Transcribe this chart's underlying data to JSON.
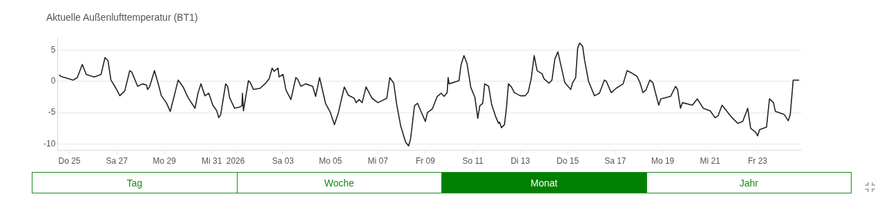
{
  "chart_data": {
    "type": "line",
    "title": "Aktuelle Außenlufttemperatur (BT1)",
    "series": [
      {
        "color": "#222222",
        "x": [
          "2025-12-24T14:00",
          "2025-12-24T15:00",
          "2025-12-25T04:00",
          "2025-12-25T08:00",
          "2025-12-25T13:00",
          "2025-12-25T17:00",
          "2025-12-26T01:00",
          "2025-12-26T08:00",
          "2025-12-26T12:00",
          "2025-12-26T15:00",
          "2025-12-26T18:00",
          "2025-12-26T23:00",
          "2025-12-27T03:00",
          "2025-12-27T08:00",
          "2025-12-27T13:00",
          "2025-12-27T15:00",
          "2025-12-27T21:00",
          "2025-12-28T02:00",
          "2025-12-28T06:00",
          "2025-12-28T07:00",
          "2025-12-28T09:00",
          "2025-12-28T14:00",
          "2025-12-28T18:00",
          "2025-12-28T21:00",
          "2025-12-29T02:00",
          "2025-12-29T06:00",
          "2025-12-29T14:00",
          "2025-12-29T19:00",
          "2025-12-30T00:00",
          "2025-12-30T07:00",
          "2025-12-30T10:00",
          "2025-12-30T13:00",
          "2025-12-30T17:00",
          "2025-12-30T21:00",
          "2025-12-31T01:00",
          "2025-12-31T05:00",
          "2025-12-31T07:00",
          "2025-12-31T09:00",
          "2025-12-31T14:00",
          "2025-12-31T16:00",
          "2025-12-31T18:00",
          "2025-12-31T23:00",
          "2026-01-01T04:00",
          "2026-01-01T06:30",
          "2026-01-01T07:00",
          "2026-01-01T08:00",
          "2026-01-01T13:00",
          "2026-01-01T15:00",
          "2026-01-01T18:00",
          "2026-01-02T01:00",
          "2026-01-02T07:00",
          "2026-01-02T10:00",
          "2026-01-02T13:00",
          "2026-01-02T15:00",
          "2026-01-02T19:00",
          "2026-01-02T20:00",
          "2026-01-03T00:00",
          "2026-01-03T03:00",
          "2026-01-03T08:00",
          "2026-01-03T13:00",
          "2026-01-03T15:00",
          "2026-01-03T18:00",
          "2026-01-03T23:00",
          "2026-01-04T06:00",
          "2026-01-04T09:00",
          "2026-01-04T13:00",
          "2026-01-04T19:00",
          "2026-01-05T00:00",
          "2026-01-05T04:00",
          "2026-01-05T08:00",
          "2026-01-05T14:00",
          "2026-01-05T18:00",
          "2026-01-06T00:00",
          "2026-01-06T02:00",
          "2026-01-06T05:00",
          "2026-01-06T08:00",
          "2026-01-06T12:00",
          "2026-01-06T18:00",
          "2026-01-07T00:00",
          "2026-01-07T09:00",
          "2026-01-07T12:00",
          "2026-01-07T16:00",
          "2026-01-07T19:00",
          "2026-01-07T23:00",
          "2026-01-08T04:00",
          "2026-01-08T07:00",
          "2026-01-08T09:00",
          "2026-01-08T13:00",
          "2026-01-08T16:00",
          "2026-01-08T19:00",
          "2026-01-09T00:00",
          "2026-01-09T02:00",
          "2026-01-09T07:00",
          "2026-01-09T12:00",
          "2026-01-09T16:00",
          "2026-01-09T19:00",
          "2026-01-09T22:00",
          "2026-01-09T23:00",
          "2026-01-10T00:00",
          "2026-01-10T10:00",
          "2026-01-10T12:00",
          "2026-01-10T15:00",
          "2026-01-10T18:00",
          "2026-01-10T22:00",
          "2026-01-11T02:00",
          "2026-01-11T05:00",
          "2026-01-11T07:00",
          "2026-01-11T10:00",
          "2026-01-11T12:00",
          "2026-01-11T16:00",
          "2026-01-11T19:00",
          "2026-01-11T23:00",
          "2026-01-12T02:00",
          "2026-01-12T03:00",
          "2026-01-12T05:00",
          "2026-01-12T08:00",
          "2026-01-12T10:00",
          "2026-01-12T12:00",
          "2026-01-12T15:00",
          "2026-01-12T18:00",
          "2026-01-13T00:00",
          "2026-01-13T05:00",
          "2026-01-13T08:00",
          "2026-01-13T11:00",
          "2026-01-13T14:00",
          "2026-01-13T17:00",
          "2026-01-13T22:00",
          "2026-01-14T00:00",
          "2026-01-14T05:00",
          "2026-01-14T08:00",
          "2026-01-14T11:00",
          "2026-01-14T14:00",
          "2026-01-14T17:00",
          "2026-01-14T21:00",
          "2026-01-15T03:00",
          "2026-01-15T05:00",
          "2026-01-15T08:00",
          "2026-01-15T10:00",
          "2026-01-15T12:00",
          "2026-01-15T15:00",
          "2026-01-15T17:00",
          "2026-01-15T21:00",
          "2026-01-16T03:00",
          "2026-01-16T08:00",
          "2026-01-16T13:00",
          "2026-01-16T15:00",
          "2026-01-16T20:00",
          "2026-01-17T01:00",
          "2026-01-17T08:00",
          "2026-01-17T12:00",
          "2026-01-17T17:00",
          "2026-01-17T22:00",
          "2026-01-18T01:00",
          "2026-01-18T04:00",
          "2026-01-18T07:00",
          "2026-01-18T11:00",
          "2026-01-18T14:00",
          "2026-01-18T20:00",
          "2026-01-18T22:00",
          "2026-01-19T08:00",
          "2026-01-19T13:00",
          "2026-01-19T15:00",
          "2026-01-19T18:00",
          "2026-01-19T20:00",
          "2026-01-20T06:00",
          "2026-01-20T11:00",
          "2026-01-20T17:00",
          "2026-01-21T00:00",
          "2026-01-21T05:00",
          "2026-01-21T08:00",
          "2026-01-21T12:00",
          "2026-01-21T21:00",
          "2026-01-22T04:00",
          "2026-01-22T09:00",
          "2026-01-22T14:00",
          "2026-01-22T17:00",
          "2026-01-22T22:00",
          "2026-01-23T00:00",
          "2026-01-23T02:00",
          "2026-01-23T09:00",
          "2026-01-23T12:00",
          "2026-01-23T16:00",
          "2026-01-23T18:00",
          "2026-01-24T03:00",
          "2026-01-24T07:00",
          "2026-01-24T09:00",
          "2026-01-24T12:00",
          "2026-01-24T18:00"
        ],
        "values": [
          1.1,
          0.8,
          0.2,
          0.6,
          2.7,
          1.1,
          0.7,
          1.1,
          3.8,
          3.3,
          0.2,
          -1.1,
          -2.3,
          -1.5,
          1.7,
          1.5,
          -0.8,
          -0.4,
          -0.6,
          -1.3,
          -0.9,
          1.7,
          -0.5,
          -2.3,
          -3.4,
          -4.8,
          0.2,
          -0.9,
          -2.6,
          -4.3,
          -1.9,
          -0.4,
          -2.3,
          -1.9,
          -3.8,
          -4.7,
          -5.8,
          -5.3,
          -0.4,
          -0.8,
          -2.6,
          -4.3,
          -4.1,
          -3.9,
          -1.9,
          -4.7,
          0.1,
          -0.2,
          -1.3,
          -1.1,
          -0.2,
          0.4,
          2.1,
          1.6,
          2.1,
          0.7,
          1.1,
          -1.4,
          -2.9,
          0.6,
          0.3,
          -0.8,
          -0.4,
          -0.8,
          -2.4,
          0.6,
          -3.5,
          -5.0,
          -6.9,
          -5.0,
          -0.9,
          -2.2,
          -2.7,
          -3.4,
          -2.9,
          -3.4,
          -0.9,
          -2.7,
          -3.4,
          -2.7,
          0.6,
          -0.3,
          -3.7,
          -7.1,
          -9.7,
          -10.3,
          -9.2,
          -3.9,
          -3.5,
          -4.6,
          -6.4,
          -5.0,
          -4.4,
          -2.4,
          -1.9,
          -2.4,
          -1.8,
          0.6,
          -0.4,
          0.1,
          2.6,
          4.1,
          2.9,
          -1.0,
          -2.5,
          -5.9,
          -3.9,
          -3.5,
          -0.4,
          -0.8,
          -3.7,
          -5.6,
          -6.7,
          -6.5,
          -7.4,
          -6.9,
          -4.2,
          -0.4,
          -0.9,
          -1.8,
          -2.3,
          -2.3,
          -1.7,
          0.4,
          4.1,
          1.7,
          1.2,
          0.4,
          -0.3,
          0.2,
          3.6,
          4.7,
          2.6,
          -0.2,
          -1.3,
          -0.2,
          0.6,
          5.3,
          6.1,
          5.6,
          3.4,
          0,
          -2.3,
          -1.9,
          0.2,
          0,
          -1.8,
          -1.1,
          -0.4,
          1.7,
          1.3,
          0.8,
          -0.2,
          -1.8,
          -1.4,
          0.2,
          -0.2,
          -3.8,
          -2.8,
          -2.4,
          -0.8,
          -1.3,
          -4.3,
          -3.4,
          -3.8,
          -2.8,
          -4.3,
          -4.7,
          -5.8,
          -5.5,
          -3.8,
          -5.6,
          -6.7,
          -6.4,
          -4.3,
          -7.5,
          -8.1,
          -8.7,
          -7.7,
          -7.3,
          -2.8,
          -3.4,
          -4.8,
          -5.3,
          -6.3,
          -5.3,
          0.2,
          0.2
        ]
      }
    ],
    "xlim": [
      "2025-12-24T12:00",
      "2026-01-24T20:00"
    ],
    "xticks": [
      {
        "value": "2025-12-25",
        "label": "Do 25"
      },
      {
        "value": "2025-12-27",
        "label": "Sa 27"
      },
      {
        "value": "2025-12-29",
        "label": "Mo 29"
      },
      {
        "value": "2025-12-31",
        "label": "Mi 31"
      },
      {
        "value": "2026-01-01",
        "label": "2026"
      },
      {
        "value": "2026-01-03",
        "label": "Sa 03"
      },
      {
        "value": "2026-01-05",
        "label": "Mo 05"
      },
      {
        "value": "2026-01-07",
        "label": "Mi 07"
      },
      {
        "value": "2026-01-09",
        "label": "Fr 09"
      },
      {
        "value": "2026-01-11",
        "label": "So 11"
      },
      {
        "value": "2026-01-13",
        "label": "Di 13"
      },
      {
        "value": "2026-01-15",
        "label": "Do 15"
      },
      {
        "value": "2026-01-17",
        "label": "Sa 17"
      },
      {
        "value": "2026-01-19",
        "label": "Mo 19"
      },
      {
        "value": "2026-01-21",
        "label": "Mi 21"
      },
      {
        "value": "2026-01-23",
        "label": "Fr 23"
      }
    ],
    "ylim": [
      -11,
      7
    ],
    "yticks": [
      -10,
      -5,
      0,
      5
    ],
    "grid": "y",
    "legend": false,
    "marker": "none",
    "line_style": "solid",
    "annotations": [
      "Tag",
      "Woche",
      "Monat",
      "Jahr"
    ]
  }
}
